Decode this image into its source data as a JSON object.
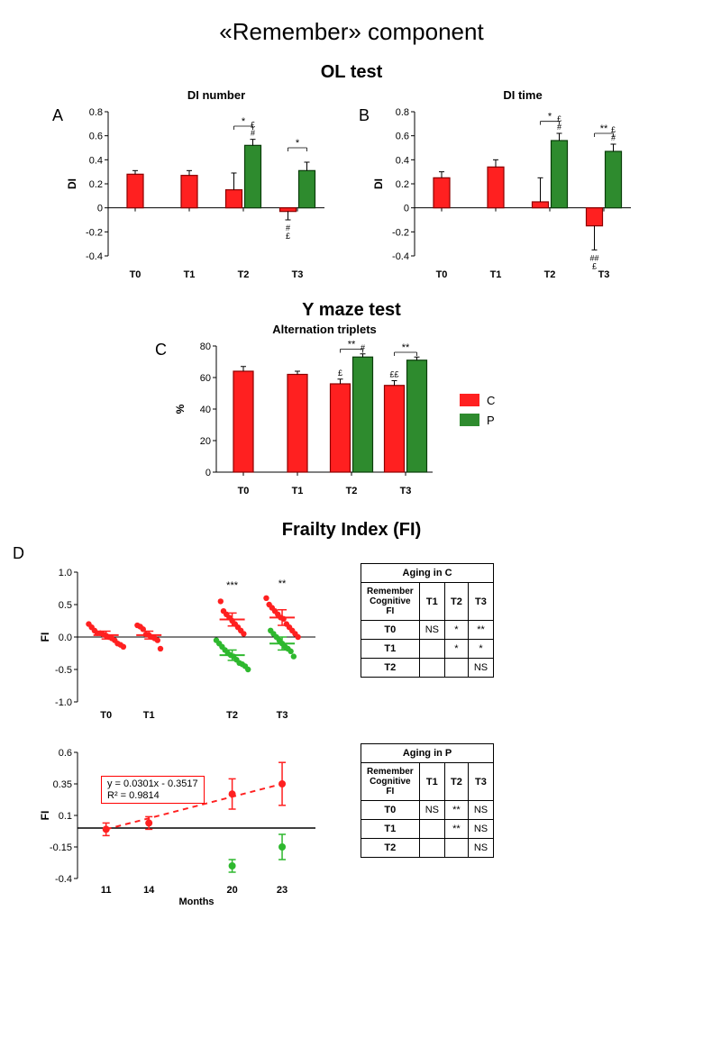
{
  "title": "«Remember» component",
  "colors": {
    "C_fill": "#ff2020",
    "C_stroke": "#8b0000",
    "P_fill": "#2e8b2e",
    "P_stroke": "#0a3d0a",
    "axis": "#000000",
    "background": "#ffffff",
    "scatter_C": "#ff2020",
    "scatter_P": "#2eb82e",
    "reg_line": "#ff2020"
  },
  "section_ol": {
    "header": "OL test",
    "A": {
      "label": "A",
      "title": "DI number",
      "ylabel": "DI",
      "x_categories": [
        "T0",
        "T1",
        "T2",
        "T3"
      ],
      "ylim": [
        -0.4,
        0.8
      ],
      "ystep": 0.2,
      "series": [
        {
          "name": "C",
          "values": [
            0.28,
            0.27,
            0.15,
            -0.03
          ],
          "err": [
            0.03,
            0.04,
            0.14,
            0.07
          ],
          "notes": [
            "",
            "",
            "",
            "#\n£"
          ]
        },
        {
          "name": "P",
          "values": [
            null,
            null,
            0.52,
            0.31
          ],
          "err": [
            null,
            null,
            0.05,
            0.07
          ],
          "notes": [
            "",
            "",
            "#\n£",
            ""
          ]
        }
      ],
      "sig_pairs": [
        {
          "at": "T2",
          "label": "*",
          "y": 0.68
        },
        {
          "at": "T3",
          "label": "*",
          "y": 0.5
        }
      ]
    },
    "B": {
      "label": "B",
      "title": "DI time",
      "ylabel": "DI",
      "x_categories": [
        "T0",
        "T1",
        "T2",
        "T3"
      ],
      "ylim": [
        -0.4,
        0.8
      ],
      "ystep": 0.2,
      "series": [
        {
          "name": "C",
          "values": [
            0.25,
            0.34,
            0.05,
            -0.15
          ],
          "err": [
            0.05,
            0.06,
            0.2,
            0.2
          ],
          "notes": [
            "",
            "",
            "",
            "##\n£"
          ]
        },
        {
          "name": "P",
          "values": [
            null,
            null,
            0.56,
            0.47
          ],
          "err": [
            null,
            null,
            0.06,
            0.06
          ],
          "notes": [
            "",
            "",
            "#\n£",
            "#\n£"
          ]
        }
      ],
      "sig_pairs": [
        {
          "at": "T2",
          "label": "*",
          "y": 0.72
        },
        {
          "at": "T3",
          "label": "**",
          "y": 0.62
        }
      ]
    }
  },
  "section_ymaze": {
    "header": "Y maze test",
    "C": {
      "label": "C",
      "title": "Alternation triplets",
      "ylabel": "%",
      "x_categories": [
        "T0",
        "T1",
        "T2",
        "T3"
      ],
      "ylim": [
        0,
        80
      ],
      "ystep": 20,
      "series": [
        {
          "name": "C",
          "values": [
            64,
            62,
            56,
            55
          ],
          "err": [
            3,
            2,
            3,
            3
          ],
          "notes": [
            "",
            "",
            "£",
            "££"
          ]
        },
        {
          "name": "P",
          "values": [
            null,
            null,
            73,
            71
          ],
          "err": [
            null,
            null,
            2,
            2
          ],
          "notes": [
            "",
            "",
            "#",
            ""
          ]
        }
      ],
      "sig_pairs": [
        {
          "at": "T2",
          "label": "**",
          "y": 78
        },
        {
          "at": "T3",
          "label": "**",
          "y": 76
        }
      ]
    },
    "legend": {
      "items": [
        {
          "key": "C",
          "label": "C"
        },
        {
          "key": "P",
          "label": "P"
        }
      ]
    }
  },
  "section_frailty": {
    "header": "Frailty Index (FI)",
    "D": {
      "label": "D",
      "scatter": {
        "ylabel": "FI",
        "x_categories": [
          "T0",
          "T1",
          "T2",
          "T3"
        ],
        "ylim": [
          -1.0,
          1.0
        ],
        "ystep": 0.5,
        "groups": [
          {
            "name": "C",
            "color": "scatter_C",
            "points": {
              "T0": [
                0.2,
                0.15,
                0.1,
                0.06,
                0.06,
                0.04,
                0.02,
                0.0,
                -0.02,
                -0.05,
                -0.1,
                -0.12,
                -0.15
              ],
              "T1": [
                0.18,
                0.16,
                0.12,
                0.04,
                0.03,
                0.0,
                -0.02,
                -0.05,
                -0.18
              ],
              "T2": [
                0.55,
                0.4,
                0.35,
                0.3,
                0.25,
                0.2,
                0.15,
                0.1,
                0.05
              ],
              "T3": [
                0.6,
                0.5,
                0.45,
                0.4,
                0.35,
                0.3,
                0.28,
                0.2,
                0.15,
                0.1,
                0.05,
                0.0
              ]
            },
            "mean": {
              "T0": 0.03,
              "T1": 0.03,
              "T2": 0.27,
              "T3": 0.3
            },
            "err": {
              "T0": 0.06,
              "T1": 0.06,
              "T2": 0.1,
              "T3": 0.12
            }
          },
          {
            "name": "P",
            "color": "scatter_P",
            "points": {
              "T2": [
                -0.05,
                -0.1,
                -0.15,
                -0.2,
                -0.25,
                -0.28,
                -0.3,
                -0.35,
                -0.4,
                -0.42,
                -0.45,
                -0.5
              ],
              "T3": [
                0.1,
                0.05,
                0.0,
                -0.05,
                -0.1,
                -0.15,
                -0.18,
                -0.22,
                -0.3
              ]
            },
            "mean": {
              "T2": -0.28,
              "T3": -0.1
            },
            "err": {
              "T2": 0.08,
              "T3": 0.1
            }
          }
        ],
        "sig": [
          {
            "at": "T2",
            "label": "***",
            "y": 0.75
          },
          {
            "at": "T3",
            "label": "**",
            "y": 0.78
          }
        ]
      },
      "regression": {
        "xlabel": "Months",
        "ylabel": "FI",
        "x_ticks": [
          11,
          14,
          20,
          23
        ],
        "ylim": [
          -0.4,
          0.6
        ],
        "ystep": 0.25,
        "C_points": {
          "x": [
            11,
            14,
            20,
            23
          ],
          "y": [
            -0.01,
            0.04,
            0.27,
            0.35
          ],
          "err": [
            0.05,
            0.05,
            0.12,
            0.17
          ]
        },
        "P_points": {
          "x": [
            20,
            23
          ],
          "y": [
            -0.3,
            -0.15
          ],
          "err": [
            0.05,
            0.1
          ]
        },
        "equation": "y = 0.0301x - 0.3517\nR² = 0.9814"
      },
      "table_C": {
        "title": "Aging in C",
        "rowhead": "Remember Cognitive FI",
        "cols": [
          "T1",
          "T2",
          "T3"
        ],
        "rows": [
          {
            "name": "T0",
            "cells": [
              "NS",
              "*",
              "**"
            ]
          },
          {
            "name": "T1",
            "cells": [
              "",
              "*",
              "*"
            ]
          },
          {
            "name": "T2",
            "cells": [
              "",
              "",
              "NS"
            ]
          }
        ]
      },
      "table_P": {
        "title": "Aging in P",
        "rowhead": "Remember Cognitive FI",
        "cols": [
          "T1",
          "T2",
          "T3"
        ],
        "rows": [
          {
            "name": "T0",
            "cells": [
              "NS",
              "**",
              "NS"
            ]
          },
          {
            "name": "T1",
            "cells": [
              "",
              "**",
              "NS"
            ]
          },
          {
            "name": "T2",
            "cells": [
              "",
              "",
              "NS"
            ]
          }
        ]
      }
    }
  }
}
